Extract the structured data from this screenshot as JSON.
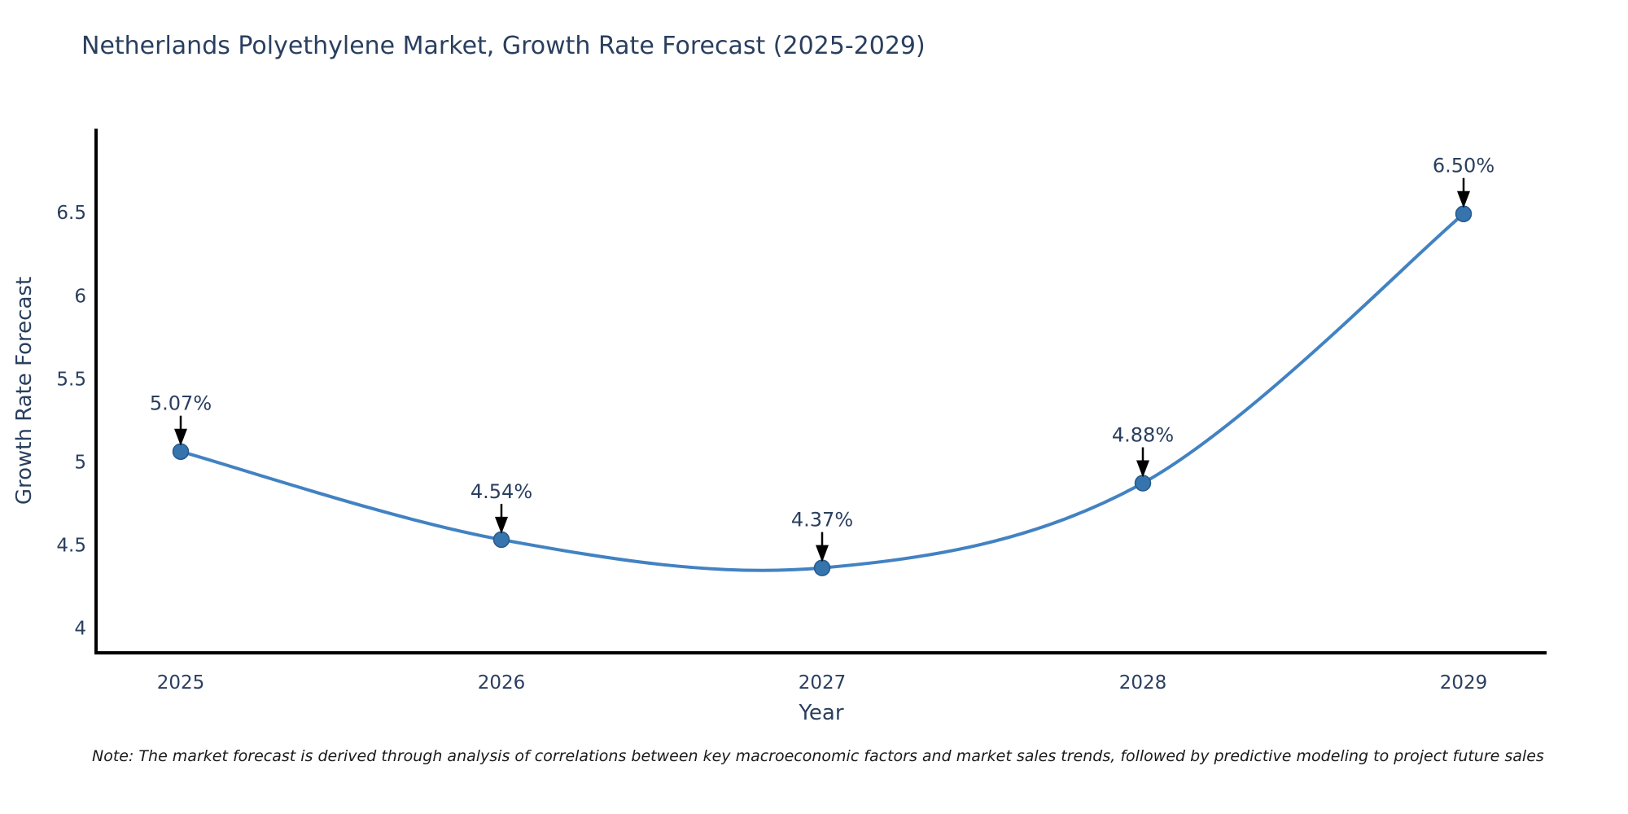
{
  "title": "Netherlands Polyethylene Market, Growth Rate Forecast (2025-2029)",
  "note": "Note: The market forecast is derived through analysis of correlations between key macroeconomic factors and market sales trends, followed by predictive modeling to project future sales",
  "colors": {
    "background": "#ffffff",
    "title_text": "#2a3f5f",
    "tick_text": "#2a3f5f",
    "axis_line": "#000000",
    "series_line": "#4282c2",
    "marker_fill": "#3674ad",
    "marker_edge": "#27598c",
    "annotation_arrow": "#000000",
    "note_text": "#1a1a1a"
  },
  "chart_data": {
    "type": "line",
    "line_shape": "spline",
    "marker": "circle",
    "grid": false,
    "legend": false,
    "title": "Netherlands Polyethylene Market, Growth Rate Forecast (2025-2029)",
    "xlabel": "Year",
    "ylabel": "Growth Rate Forecast",
    "x": [
      2025,
      2026,
      2027,
      2028,
      2029
    ],
    "values": [
      5.07,
      4.54,
      4.37,
      4.88,
      6.5
    ],
    "point_labels": [
      "5.07%",
      "4.54%",
      "4.37%",
      "4.88%",
      "6.50%"
    ],
    "xticks": [
      "2025",
      "2026",
      "2027",
      "2028",
      "2029"
    ],
    "yticks": [
      4,
      4.5,
      5,
      5.5,
      6,
      6.5
    ],
    "ylim": [
      3.85,
      7.0
    ],
    "xlim": [
      2024.74,
      2029.27
    ]
  }
}
